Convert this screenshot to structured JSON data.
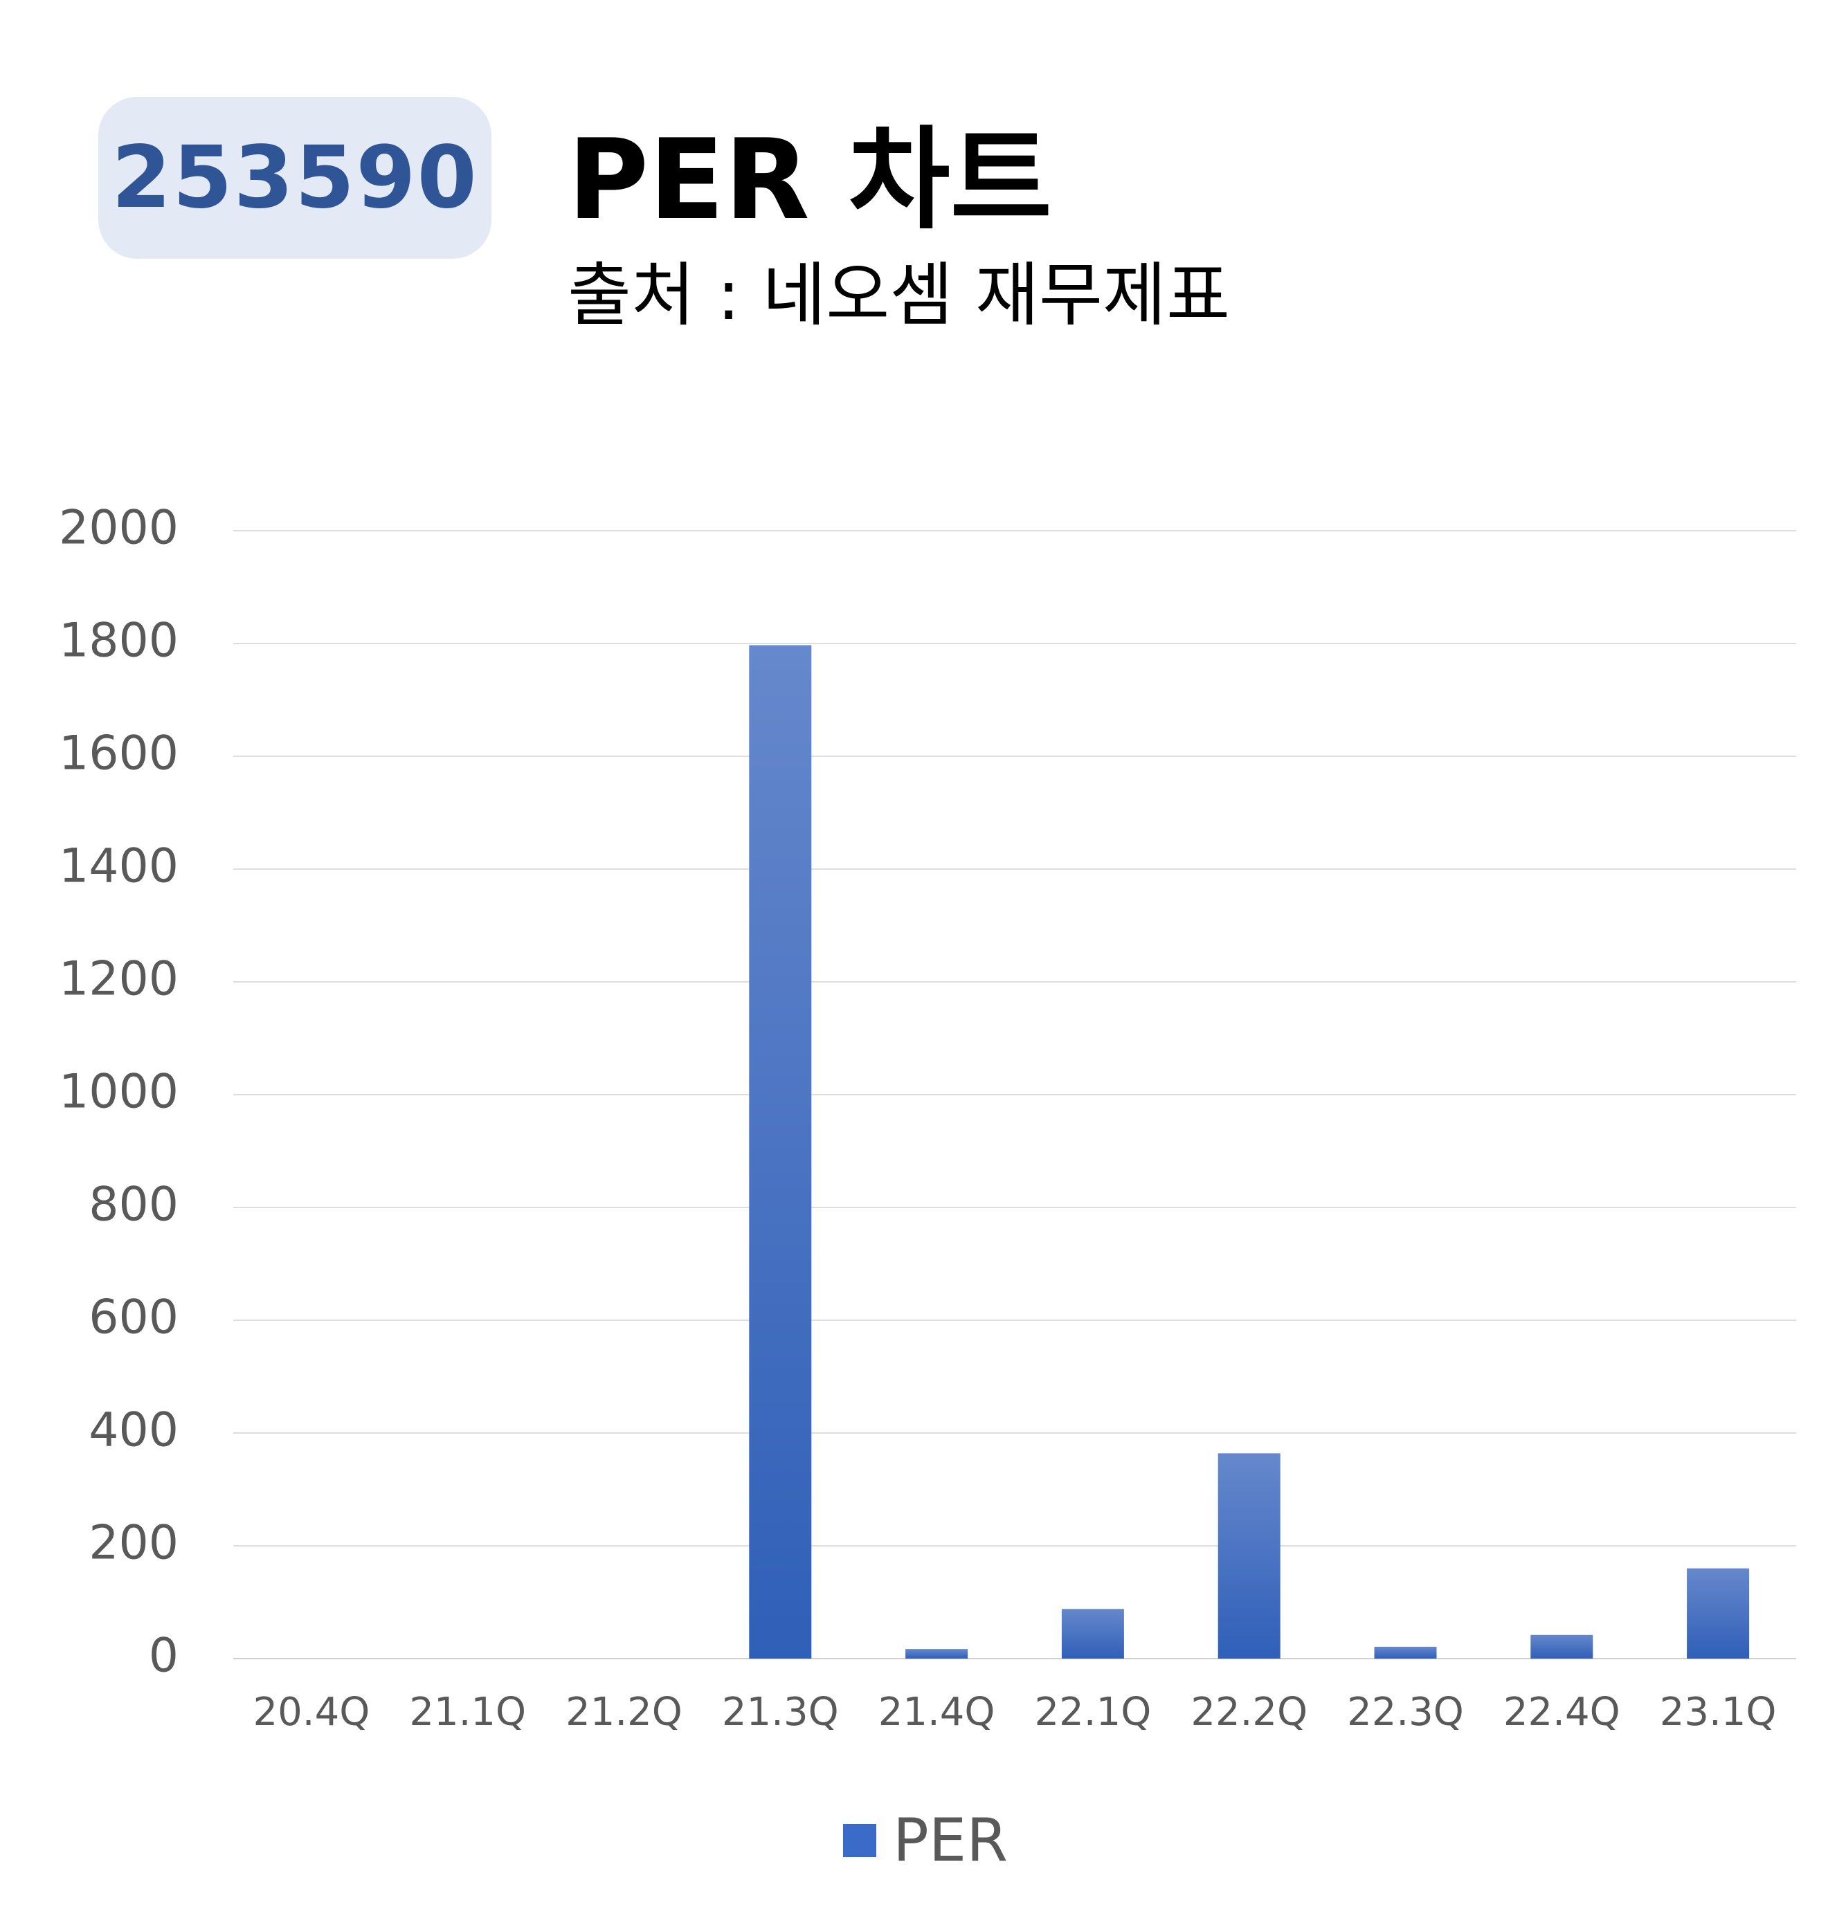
{
  "header": {
    "code": "253590",
    "title": "PER 차트",
    "subtitle": "출처 : 네오셈 재무제표"
  },
  "chart_data": {
    "type": "bar",
    "title": "PER 차트",
    "subtitle": "출처 : 네오셈 재무제표",
    "categories": [
      "20.4Q",
      "21.1Q",
      "21.2Q",
      "21.3Q",
      "21.4Q",
      "22.1Q",
      "22.2Q",
      "22.3Q",
      "22.4Q",
      "23.1Q"
    ],
    "series": [
      {
        "name": "PER",
        "values": [
          0,
          0,
          0,
          1797,
          17,
          88,
          364,
          21,
          42,
          160
        ],
        "color": "#3a6bc8"
      }
    ],
    "ylim": [
      0,
      2000
    ],
    "yticks": [
      0,
      200,
      400,
      600,
      800,
      1000,
      1200,
      1400,
      1600,
      1800,
      2000
    ],
    "grid": true,
    "legend": "bottom"
  }
}
